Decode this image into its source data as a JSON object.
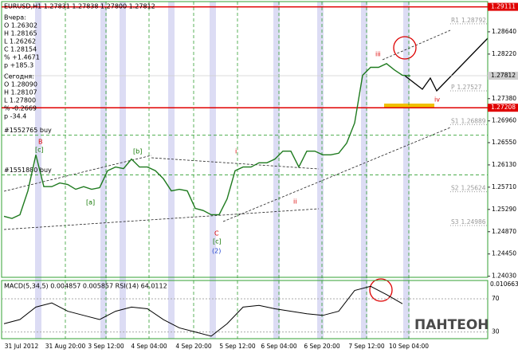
{
  "chart_data": {
    "type": "line",
    "title": "EURUSD,H1 1.27831 1.27838 1.27800 1.27812",
    "yesterday": [
      "Вчера:",
      "O 1.26302",
      "H 1.28165",
      "L 1.26262",
      "C 1.28154",
      "% +1.4671",
      "p +185.3"
    ],
    "today": [
      "Сегодня:",
      "O 1.28090",
      "H 1.28107",
      "L 1.27800",
      "% -0.2669",
      "p -34.4"
    ],
    "x_labels": [
      "31 Jul 2012",
      "31 Aug 20:00",
      "3 Sep 12:00",
      "4 Sep 04:00",
      "4 Sep 20:00",
      "5 Sep 12:00",
      "6 Sep 04:00",
      "6 Sep 20:00",
      "7 Sep 12:00",
      "10 Sep 04:00"
    ],
    "series": [
      {
        "name": "EURUSD",
        "color": "#1e7a1e",
        "values": [
          1.2516,
          1.2512,
          1.2519,
          1.2564,
          1.2632,
          1.2572,
          1.2572,
          1.2579,
          1.2576,
          1.2567,
          1.2572,
          1.2567,
          1.257,
          1.2602,
          1.2609,
          1.2606,
          1.2624,
          1.2609,
          1.2609,
          1.2602,
          1.2587,
          1.2564,
          1.2567,
          1.2564,
          1.2531,
          1.2527,
          1.2519,
          1.2519,
          1.2549,
          1.2602,
          1.2609,
          1.2609,
          1.2617,
          1.2617,
          1.2624,
          1.2639,
          1.2639,
          1.2609,
          1.2639,
          1.2639,
          1.2632,
          1.2632,
          1.2635,
          1.2654,
          1.2692,
          1.2782,
          1.2797,
          1.2797,
          1.2804,
          1.2792,
          1.2782,
          1.2781
        ]
      }
    ],
    "ylim": [
      1.2401,
      1.2921
    ],
    "yticks": [
      {
        "value": 1.2864,
        "label": "1.28640"
      },
      {
        "value": 1.2822,
        "label": "1.28220"
      },
      {
        "value": 1.2738,
        "label": "1.27380"
      },
      {
        "value": 1.2696,
        "label": "1.26960"
      },
      {
        "value": 1.2655,
        "label": "1.26550"
      },
      {
        "value": 1.2613,
        "label": "1.26130"
      },
      {
        "value": 1.2571,
        "label": "1.25710"
      },
      {
        "value": 1.2529,
        "label": "1.25290"
      },
      {
        "value": 1.2487,
        "label": "1.24870"
      },
      {
        "value": 1.2445,
        "label": "1.24450"
      },
      {
        "value": 1.2403,
        "label": "1.24030"
      }
    ],
    "levels": [
      {
        "value": 1.29111,
        "color": "#e00000"
      },
      {
        "value": 1.27208,
        "color": "#e00000"
      },
      {
        "value": 1.27812,
        "color": "#cfcfcf"
      }
    ],
    "pivots": [
      {
        "name": "R1",
        "value": 1.28792
      },
      {
        "name": "P",
        "value": 1.27527
      },
      {
        "name": "S1",
        "value": 1.26889
      },
      {
        "name": "S2",
        "value": 1.25624
      },
      {
        "name": "S3",
        "value": 1.24986
      }
    ],
    "orders": [
      {
        "label": "#1552765 buy",
        "value": 1.2669
      },
      {
        "label": "#1551880 buy",
        "value": 1.2594
      }
    ],
    "waves": [
      "B",
      "[c]",
      "[b]",
      "[a]",
      "i",
      "ii",
      "iii",
      "iv",
      "C",
      "[c]",
      "(2)"
    ],
    "indicator": {
      "title": "MACD(5,34,5) 0.004857 0.005857 RSI(14) 64.0112",
      "top_label": "0.010663",
      "rsi": [
        40,
        45,
        60,
        65,
        55,
        50,
        45,
        55,
        60,
        58,
        45,
        35,
        30,
        25,
        40,
        60,
        62,
        58,
        55,
        52,
        50,
        55,
        80,
        85,
        75,
        64
      ],
      "ylim": [
        22,
        92
      ],
      "yticks": [
        70,
        30
      ]
    },
    "logo": "ПАНТЕОН"
  }
}
